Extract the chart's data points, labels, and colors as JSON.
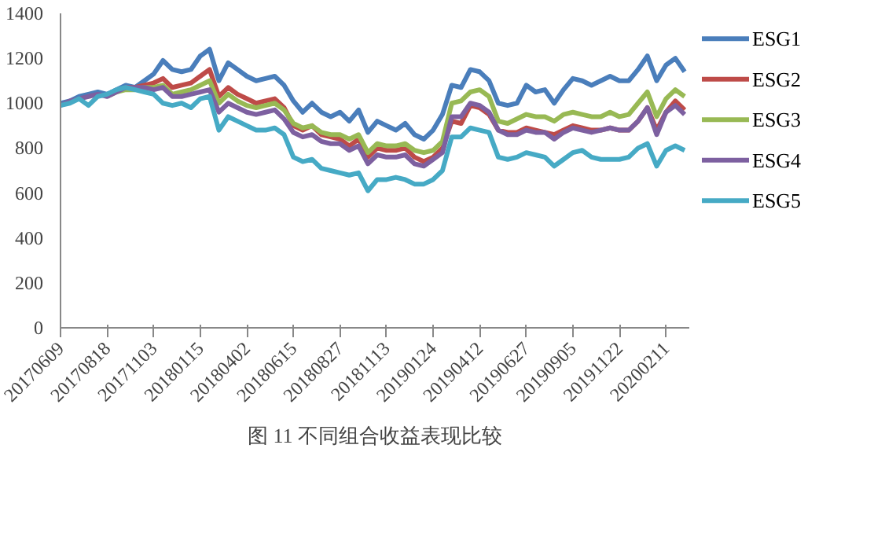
{
  "chart_data": {
    "type": "line",
    "categories": [
      "20170609",
      null,
      null,
      null,
      null,
      "20170818",
      null,
      null,
      null,
      null,
      "20171103",
      null,
      null,
      null,
      null,
      "20180115",
      null,
      null,
      null,
      null,
      "20180402",
      null,
      null,
      null,
      null,
      "20180615",
      null,
      null,
      null,
      null,
      "20180827",
      null,
      null,
      null,
      null,
      "20181113",
      null,
      null,
      null,
      null,
      "20190124",
      null,
      null,
      null,
      null,
      "20190412",
      null,
      null,
      null,
      null,
      "20190627",
      null,
      null,
      null,
      null,
      "20190905",
      null,
      null,
      null,
      null,
      "20191122",
      null,
      null,
      null,
      null,
      "20200211",
      null,
      null
    ],
    "ylim": [
      0,
      1400
    ],
    "yticks": [
      0,
      200,
      400,
      600,
      800,
      1000,
      1200,
      1400
    ],
    "grid": false,
    "legend": "right",
    "annotations": [
      "图 11 不同组合收益表现比较"
    ],
    "series": [
      {
        "name": "ESG1",
        "color": "#4a7ebb",
        "values": [
          1000,
          1010,
          1030,
          1040,
          1050,
          1040,
          1060,
          1080,
          1070,
          1100,
          1130,
          1190,
          1150,
          1140,
          1150,
          1210,
          1240,
          1100,
          1180,
          1150,
          1120,
          1100,
          1110,
          1120,
          1080,
          1010,
          960,
          1000,
          960,
          940,
          960,
          920,
          970,
          870,
          920,
          900,
          880,
          910,
          860,
          840,
          880,
          950,
          1080,
          1070,
          1150,
          1140,
          1100,
          1000,
          990,
          1000,
          1080,
          1050,
          1060,
          1000,
          1060,
          1110,
          1100,
          1080,
          1100,
          1120,
          1100,
          1100,
          1150,
          1210,
          1100,
          1170,
          1200,
          1140
        ]
      },
      {
        "name": "ESG2",
        "color": "#be4b48",
        "values": [
          null,
          null,
          null,
          null,
          null,
          null,
          null,
          1070,
          1070,
          1080,
          1090,
          1110,
          1070,
          1080,
          1090,
          1120,
          1150,
          1030,
          1070,
          1040,
          1020,
          1000,
          1010,
          1020,
          980,
          900,
          880,
          900,
          860,
          850,
          840,
          810,
          840,
          760,
          800,
          790,
          790,
          800,
          760,
          740,
          760,
          800,
          920,
          910,
          990,
          980,
          950,
          880,
          870,
          870,
          890,
          880,
          870,
          860,
          880,
          900,
          890,
          880,
          880,
          890,
          880,
          880,
          920,
          980,
          880,
          960,
          1010,
          970
        ]
      },
      {
        "name": "ESG3",
        "color": "#98b954",
        "values": [
          null,
          null,
          null,
          null,
          null,
          1030,
          1050,
          1060,
          1060,
          1070,
          1070,
          1080,
          1040,
          1050,
          1060,
          1080,
          1100,
          1000,
          1040,
          1010,
          990,
          980,
          990,
          1000,
          970,
          910,
          890,
          900,
          870,
          860,
          860,
          840,
          860,
          780,
          820,
          810,
          810,
          820,
          790,
          780,
          790,
          830,
          1000,
          1010,
          1050,
          1060,
          1030,
          920,
          910,
          930,
          950,
          940,
          940,
          920,
          950,
          960,
          950,
          940,
          940,
          960,
          940,
          950,
          1000,
          1050,
          940,
          1020,
          1060,
          1030
        ]
      },
      {
        "name": "ESG4",
        "color": "#7d60a0",
        "values": [
          990,
          1010,
          1020,
          1030,
          1040,
          1030,
          1050,
          1070,
          1070,
          1070,
          1060,
          1070,
          1030,
          1030,
          1040,
          1050,
          1060,
          960,
          1000,
          980,
          960,
          950,
          960,
          970,
          930,
          870,
          850,
          860,
          830,
          820,
          820,
          790,
          810,
          730,
          770,
          760,
          760,
          770,
          730,
          720,
          750,
          780,
          940,
          940,
          1000,
          990,
          960,
          880,
          860,
          860,
          880,
          870,
          870,
          840,
          870,
          890,
          880,
          870,
          880,
          890,
          880,
          880,
          920,
          980,
          860,
          960,
          990,
          950
        ]
      },
      {
        "name": "ESG5",
        "color": "#46aac5",
        "values": [
          990,
          1000,
          1020,
          990,
          1030,
          1040,
          1060,
          1070,
          1060,
          1050,
          1040,
          1000,
          990,
          1000,
          980,
          1020,
          1030,
          880,
          940,
          920,
          900,
          880,
          880,
          890,
          860,
          760,
          740,
          750,
          710,
          700,
          690,
          680,
          690,
          610,
          660,
          660,
          670,
          660,
          640,
          640,
          660,
          700,
          850,
          850,
          890,
          880,
          870,
          760,
          750,
          760,
          780,
          770,
          760,
          720,
          750,
          780,
          790,
          760,
          750,
          750,
          750,
          760,
          800,
          820,
          720,
          790,
          810,
          790
        ]
      }
    ]
  }
}
